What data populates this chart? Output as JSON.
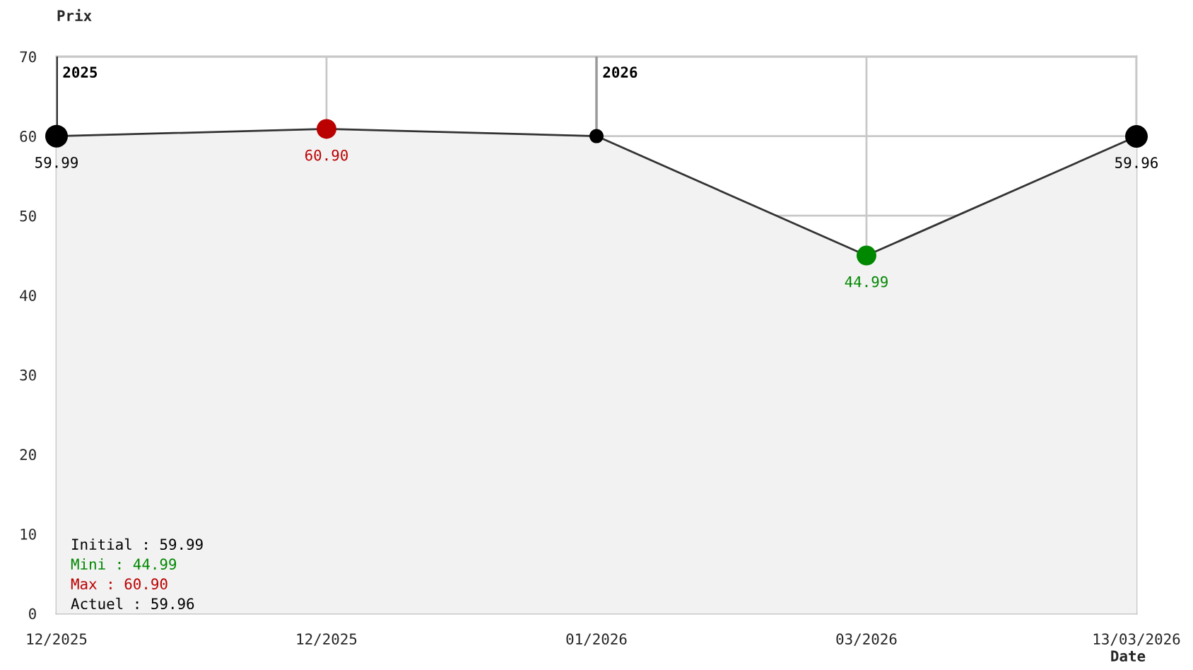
{
  "chart_data": {
    "type": "area",
    "xlabel": "Date",
    "ylabel": "Prix",
    "categories": [
      "12/2025",
      "12/2025",
      "01/2026",
      "03/2026",
      "13/03/2026"
    ],
    "series": [
      {
        "color": "#333333",
        "colors": [
          "#000000",
          "#bb0000",
          "#000000",
          "#008800",
          "#000000"
        ],
        "values": [
          59.99,
          60.9,
          60,
          44.99,
          59.96
        ],
        "value_labels": [
          "59.99",
          "60.90",
          null,
          "44.99",
          "59.96"
        ]
      }
    ],
    "ylim": [
      0,
      70
    ],
    "yticks": [
      0,
      10,
      20,
      30,
      40,
      50,
      60,
      70
    ],
    "grid": true,
    "marker": "circle",
    "line_style": "solid",
    "ref_lines": [
      {
        "axis": "x",
        "value": "12/2025",
        "label": "2025",
        "color": "#000000"
      },
      {
        "axis": "x",
        "value": "01/2026",
        "label": "2026",
        "color": "#999999"
      }
    ],
    "annotations": [
      "Initial : 59.99",
      "Mini : 44.99",
      "Max : 60.90",
      "Actuel : 59.96"
    ]
  }
}
